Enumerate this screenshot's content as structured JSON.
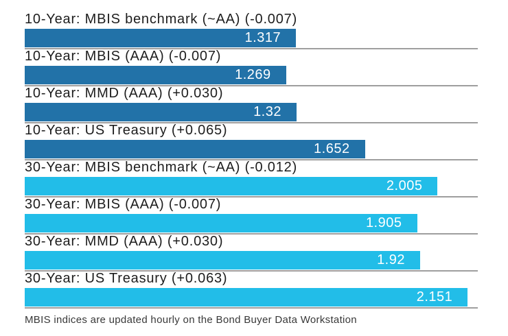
{
  "chart_data": {
    "type": "bar",
    "orientation": "horizontal",
    "title": "",
    "xlabel": "",
    "ylabel": "",
    "xlim": [
      0,
      2.2
    ],
    "xmax": 2.2,
    "grid": false,
    "legend": "none",
    "value_label_position": "inside-end",
    "groups": {
      "10-year": "#2272a8",
      "30-year": "#22bde8"
    },
    "bars": [
      {
        "label": "10-Year: MBIS benchmark (~AA) (-0.007)",
        "value": 1.317,
        "value_label": "1.317",
        "change": "-0.007",
        "group": "10-year"
      },
      {
        "label": "10-Year: MBIS (AAA) (-0.007)",
        "value": 1.269,
        "value_label": "1.269",
        "change": "-0.007",
        "group": "10-year"
      },
      {
        "label": "10-Year: MMD (AAA) (+0.030)",
        "value": 1.32,
        "value_label": "1.32",
        "change": "+0.030",
        "group": "10-year"
      },
      {
        "label": "10-Year: US Treasury (+0.065)",
        "value": 1.652,
        "value_label": "1.652",
        "change": "+0.065",
        "group": "10-year"
      },
      {
        "label": "30-Year: MBIS benchmark (~AA) (-0.012)",
        "value": 2.005,
        "value_label": "2.005",
        "change": "-0.012",
        "group": "30-year"
      },
      {
        "label": "30-Year: MBIS (AAA) (-0.007)",
        "value": 1.905,
        "value_label": "1.905",
        "change": "-0.007",
        "group": "30-year"
      },
      {
        "label": "30-Year: MMD (AAA) (+0.030)",
        "value": 1.92,
        "value_label": "1.92",
        "change": "+0.030",
        "group": "30-year"
      },
      {
        "label": "30-Year: US Treasury (+0.063)",
        "value": 2.151,
        "value_label": "2.151",
        "change": "+0.063",
        "group": "30-year"
      }
    ]
  },
  "footer": {
    "note": "MBIS indices are updated hourly on the Bond Buyer Data Workstation"
  },
  "colors": {
    "background": "#ffffff",
    "bar_10_year": "#2272a8",
    "bar_30_year": "#22bde8",
    "separator": "#9e9e9e",
    "label_text": "#1d1d1d",
    "value_text": "#ffffff",
    "footnote_text": "#383838"
  }
}
